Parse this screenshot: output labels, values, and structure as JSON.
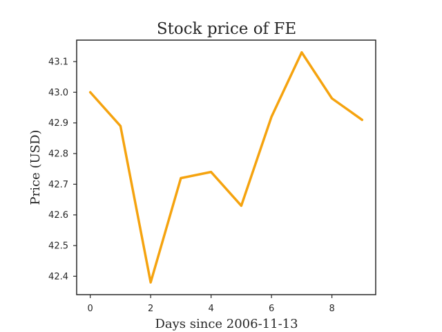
{
  "chart_data": {
    "type": "line",
    "title": "Stock price of FE",
    "xlabel": "Days since 2006-11-13",
    "ylabel": "Price (USD)",
    "x": [
      0,
      1,
      2,
      3,
      4,
      5,
      6,
      7,
      8,
      9
    ],
    "series": [
      {
        "values": [
          43.0,
          42.89,
          42.38,
          42.72,
          42.74,
          42.63,
          42.92,
          43.13,
          42.98,
          42.91
        ],
        "color": "#f5a30f"
      }
    ],
    "xlim": [
      -0.45,
      9.45
    ],
    "ylim": [
      42.34,
      43.17
    ],
    "xticks": [
      0,
      2,
      4,
      6,
      8
    ],
    "xtick_labels": [
      "0",
      "2",
      "4",
      "6",
      "8"
    ],
    "yticks": [
      42.4,
      42.5,
      42.6,
      42.7,
      42.8,
      42.9,
      43.0,
      43.1
    ],
    "ytick_labels": [
      "42.4",
      "42.5",
      "42.6",
      "42.7",
      "42.8",
      "42.9",
      "43.0",
      "43.1"
    ],
    "grid": false,
    "legend": "none"
  }
}
